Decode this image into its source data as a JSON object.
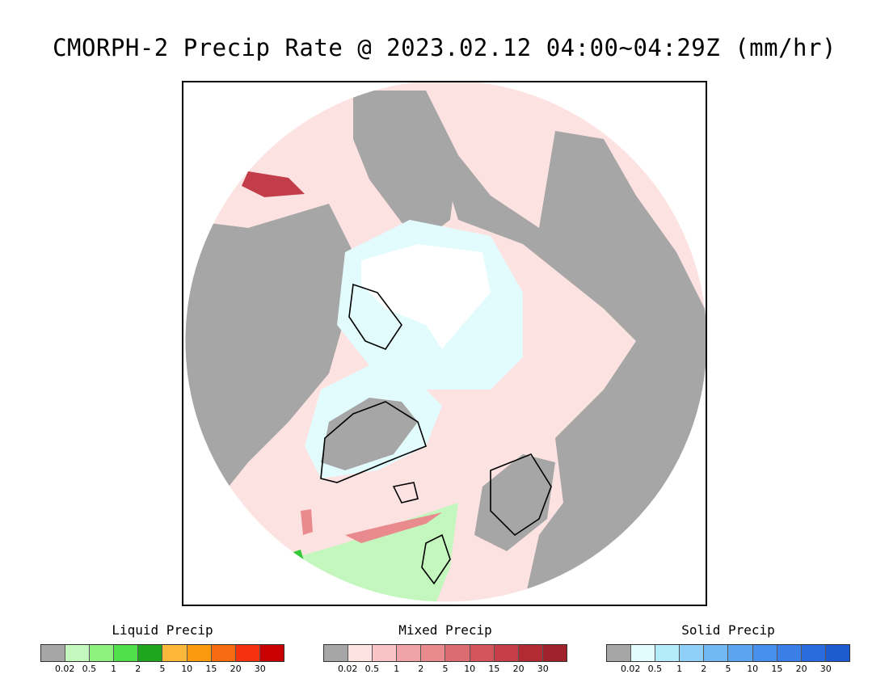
{
  "title": "CMORPH-2 Precip Rate @ 2023.02.12 04:00~04:29Z (mm/hr)",
  "colors": {
    "no_precip": "#a6a6a6",
    "liquid_light": "#c8f5c0",
    "liquid_green": "#36c836",
    "mixed_light": "#fde2e2",
    "mixed_heavy": "#c33c4a",
    "solid_light": "#e6fbfd",
    "solid_ice": "#ffffff",
    "coastline": "#000000"
  },
  "legends": [
    {
      "title": "Liquid Precip",
      "ticks": [
        "0.02",
        "0.5",
        "1",
        "2",
        "5",
        "10",
        "15",
        "20",
        "30"
      ],
      "colors": [
        "#a6a6a6",
        "#c4f7bd",
        "#8ef07f",
        "#4fe04c",
        "#1ea61e",
        "#fdb73b",
        "#fb9a0e",
        "#f86a10",
        "#f4330e",
        "#c80000"
      ]
    },
    {
      "title": "Mixed Precip",
      "ticks": [
        "0.02",
        "0.5",
        "1",
        "2",
        "5",
        "10",
        "15",
        "20",
        "30"
      ],
      "colors": [
        "#a6a6a6",
        "#fde2e2",
        "#f8c4c6",
        "#f0a3a6",
        "#e88a8e",
        "#dc6c72",
        "#d4545c",
        "#c83e48",
        "#b22a32",
        "#a0222a"
      ]
    },
    {
      "title": "Solid Precip",
      "ticks": [
        "0.02",
        "0.5",
        "1",
        "2",
        "5",
        "10",
        "15",
        "20",
        "30"
      ],
      "colors": [
        "#a6a6a6",
        "#e2fcfe",
        "#b4ecfb",
        "#90cff8",
        "#72b8f2",
        "#5aa4f0",
        "#4690ec",
        "#3a7ee8",
        "#2a6ce0",
        "#1e5ad0"
      ]
    }
  ]
}
